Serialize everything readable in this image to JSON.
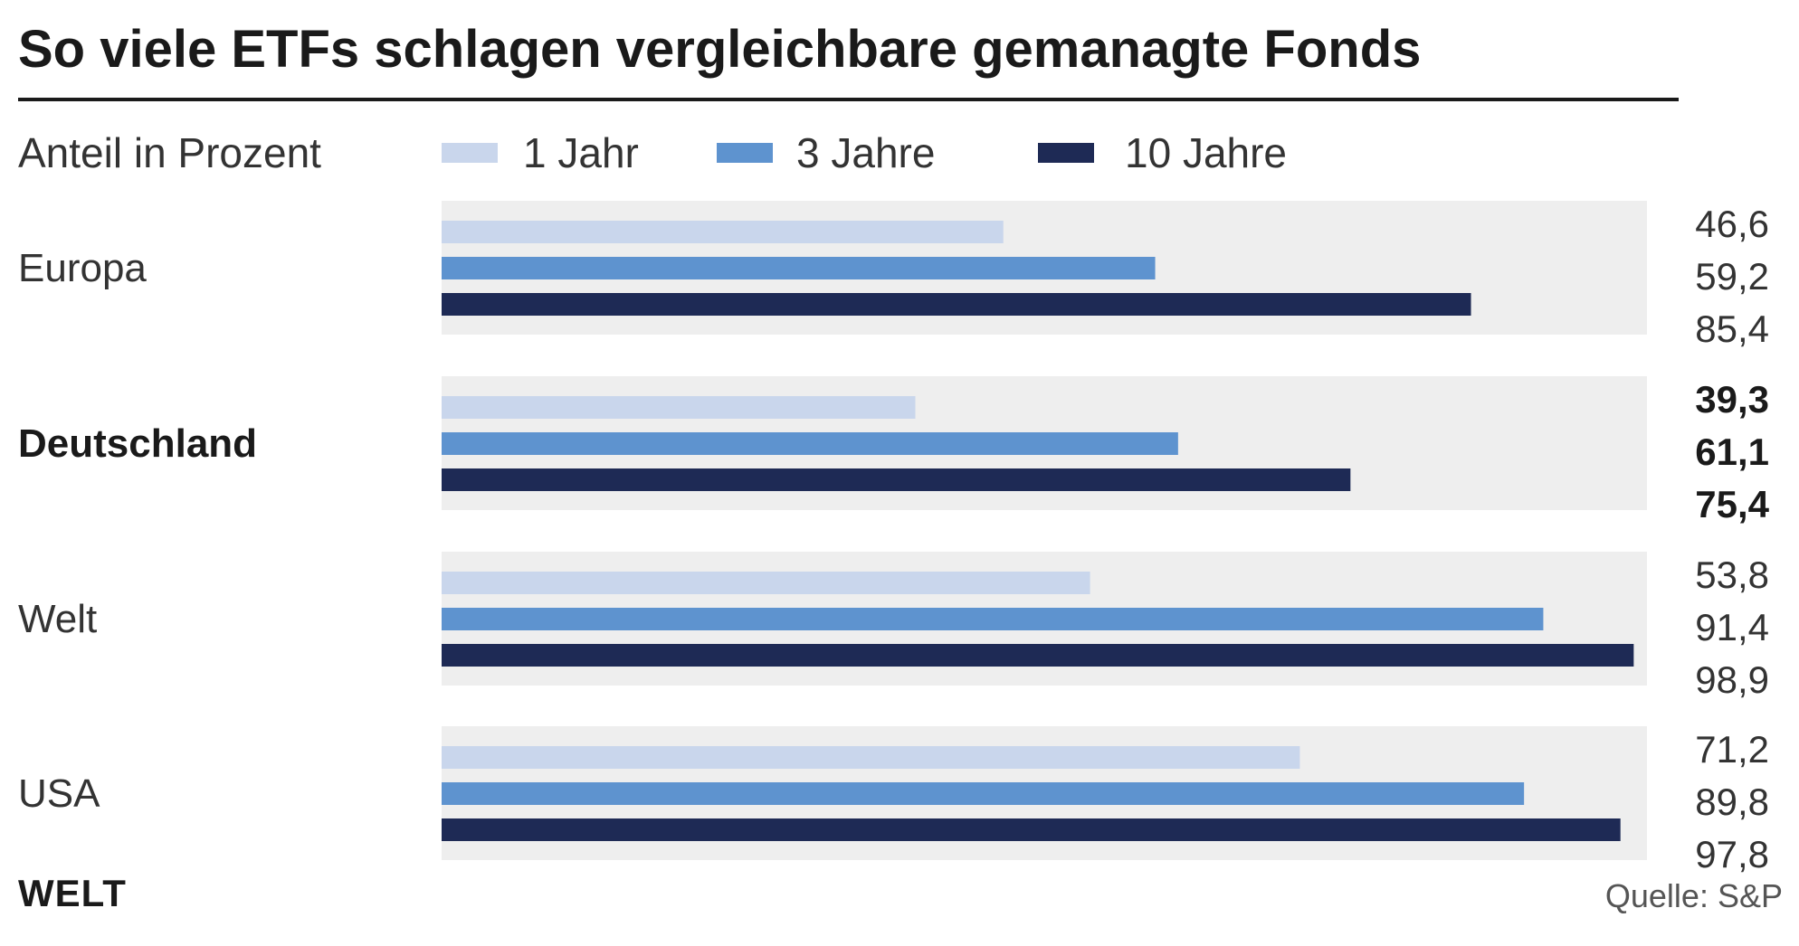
{
  "chart_data": {
    "type": "bar",
    "orientation": "horizontal",
    "title": "So viele ETFs schlagen vergleichbare gemanagte Fonds",
    "subtitle": "Anteil in Prozent",
    "categories": [
      "Europa",
      "Deutschland",
      "Welt",
      "USA"
    ],
    "highlight_category": "Deutschland",
    "series": [
      {
        "name": "1 Jahr",
        "color": "#c9d6ec",
        "values": [
          46.6,
          39.3,
          53.8,
          71.2
        ]
      },
      {
        "name": "3 Jahre",
        "color": "#5e93cf",
        "values": [
          59.2,
          61.1,
          91.4,
          89.8
        ]
      },
      {
        "name": "10 Jahre",
        "color": "#1e2a55",
        "values": [
          85.4,
          75.4,
          98.9,
          97.8
        ]
      }
    ],
    "value_labels": [
      [
        "46,6",
        "59,2",
        "85,4"
      ],
      [
        "39,3",
        "61,1",
        "75,4"
      ],
      [
        "53,8",
        "91,4",
        "98,9"
      ],
      [
        "71,2",
        "89,8",
        "97,8"
      ]
    ],
    "xlim": [
      0,
      100
    ],
    "legend_position": "top",
    "grid": false,
    "source": "Quelle: S&P",
    "brand": "WELT",
    "colors": {
      "background": "#ffffff",
      "group_background": "#eeeeee",
      "rule": "#1a1a1a"
    }
  }
}
